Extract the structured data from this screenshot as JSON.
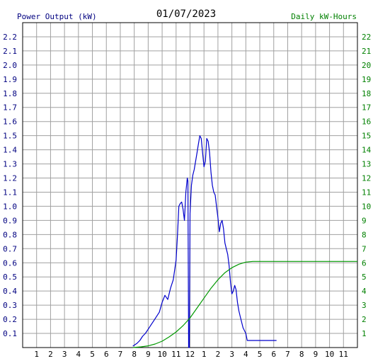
{
  "chart_data": {
    "type": "line",
    "title": "01/07/2023",
    "left_axis_label": "Power Output (kW)",
    "right_axis_label": "Daily kW-Hours",
    "x_ticks": [
      "1",
      "2",
      "3",
      "4",
      "5",
      "6",
      "7",
      "8",
      "9",
      "10",
      "11",
      "12",
      "1",
      "2",
      "3",
      "4",
      "5",
      "6",
      "7",
      "8",
      "9",
      "10",
      "11"
    ],
    "left_ticks": [
      "0.1",
      "0.2",
      "0.3",
      "0.4",
      "0.5",
      "0.6",
      "0.7",
      "0.8",
      "0.9",
      "1.0",
      "1.1",
      "1.2",
      "1.3",
      "1.4",
      "1.5",
      "1.6",
      "1.7",
      "1.8",
      "1.9",
      "2.0",
      "2.1",
      "2.2"
    ],
    "right_ticks": [
      "1",
      "2",
      "3",
      "4",
      "5",
      "6",
      "7",
      "8",
      "9",
      "10",
      "11",
      "12",
      "13",
      "14",
      "15",
      "16",
      "17",
      "18",
      "19",
      "20",
      "21",
      "22"
    ],
    "left_ylim": [
      0,
      2.3
    ],
    "right_ylim": [
      0,
      23
    ],
    "xlim": [
      0,
      24
    ],
    "grid": true,
    "colors": {
      "power": "#0000cc",
      "energy": "#009900",
      "grid": "#a0a0a0",
      "left_text": "#000080",
      "right_text": "#008000",
      "title_text": "#000000"
    },
    "series": [
      {
        "axis": "left",
        "x": [
          7.9,
          8.2,
          8.4,
          8.6,
          8.8,
          9.0,
          9.2,
          9.4,
          9.6,
          9.8,
          10.0,
          10.2,
          10.4,
          10.6,
          10.8,
          11.0,
          11.1,
          11.2,
          11.3,
          11.4,
          11.5,
          11.6,
          11.7,
          11.8,
          11.85,
          11.9,
          11.95,
          12.0,
          12.1,
          12.2,
          12.3,
          12.4,
          12.5,
          12.6,
          12.7,
          12.8,
          12.9,
          13.0,
          13.1,
          13.2,
          13.3,
          13.4,
          13.5,
          13.6,
          13.7,
          13.8,
          13.9,
          14.0,
          14.1,
          14.2,
          14.3,
          14.4,
          14.5,
          14.6,
          14.7,
          14.8,
          14.9,
          15.0,
          15.1,
          15.2,
          15.3,
          15.4,
          15.5,
          15.6,
          15.7,
          15.8,
          15.9,
          16.0,
          16.1,
          16.2,
          16.3,
          16.4,
          16.5,
          16.6,
          16.7,
          16.8,
          16.9,
          17.0,
          17.2,
          17.4,
          17.6,
          17.8,
          18.0,
          18.2
        ],
        "values": [
          0.01,
          0.03,
          0.05,
          0.08,
          0.1,
          0.13,
          0.16,
          0.19,
          0.22,
          0.25,
          0.32,
          0.37,
          0.34,
          0.42,
          0.48,
          0.62,
          0.8,
          1.0,
          1.02,
          1.03,
          0.98,
          0.9,
          1.1,
          1.2,
          1.18,
          0.0,
          0.0,
          0.95,
          1.15,
          1.22,
          1.26,
          1.32,
          1.38,
          1.44,
          1.5,
          1.48,
          1.38,
          1.28,
          1.32,
          1.48,
          1.46,
          1.38,
          1.24,
          1.15,
          1.1,
          1.08,
          1.0,
          0.92,
          0.82,
          0.88,
          0.9,
          0.84,
          0.74,
          0.7,
          0.66,
          0.58,
          0.46,
          0.38,
          0.4,
          0.44,
          0.41,
          0.32,
          0.26,
          0.22,
          0.18,
          0.14,
          0.12,
          0.1,
          0.05,
          0.05,
          0.05,
          0.05,
          0.05,
          0.05,
          0.05,
          0.05,
          0.05,
          0.05,
          0.05,
          0.05,
          0.05,
          0.05,
          0.05,
          0.05
        ]
      },
      {
        "axis": "right",
        "x": [
          7.9,
          8.5,
          9.0,
          9.5,
          10.0,
          10.5,
          11.0,
          11.5,
          12.0,
          12.5,
          13.0,
          13.5,
          14.0,
          14.5,
          15.0,
          15.5,
          16.0,
          16.5,
          17.0,
          17.5,
          18.0,
          18.5,
          19.0,
          19.5,
          20.0,
          20.5,
          21.0,
          21.5,
          22.0,
          22.5,
          23.0,
          23.5,
          24.0
        ],
        "values": [
          0.0,
          0.05,
          0.12,
          0.25,
          0.45,
          0.75,
          1.1,
          1.55,
          2.1,
          2.8,
          3.5,
          4.2,
          4.8,
          5.3,
          5.65,
          5.9,
          6.05,
          6.1,
          6.1,
          6.1,
          6.1,
          6.1,
          6.1,
          6.1,
          6.1,
          6.1,
          6.1,
          6.1,
          6.1,
          6.1,
          6.1,
          6.1,
          6.1
        ]
      }
    ]
  }
}
